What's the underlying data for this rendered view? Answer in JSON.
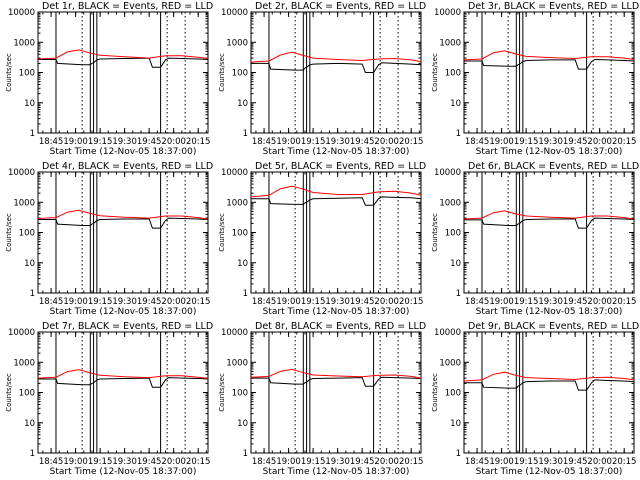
{
  "figure": {
    "background": "#ffffff",
    "events_color": "#000000",
    "lld_color": "#ff0000",
    "axis_color": "#000000"
  },
  "chart_data": [
    {
      "type": "line",
      "title": "Det 1r, BLACK = Events, RED = LLD",
      "xlabel": "Start Time (12-Nov-05 18:37:00)",
      "ylabel": "Counts/sec",
      "x_ticks": [
        "18:45",
        "19:00",
        "19:15",
        "19:30",
        "19:45",
        "20:00",
        "20:15"
      ],
      "y_ticks": [
        "1",
        "10",
        "100",
        "1000",
        "10000"
      ],
      "y_scale": "log",
      "ylim": [
        1,
        10000
      ],
      "vlines_solid": [
        "18:48",
        "19:09",
        "19:11",
        "19:13",
        "19:52"
      ],
      "vlines_dotted": [
        "19:04",
        "19:56",
        "20:07"
      ],
      "series": [
        {
          "name": "Events",
          "color": "#000000",
          "x": [
            "18:37",
            "18:48",
            "18:49",
            "19:04",
            "19:09",
            "19:10",
            "19:11",
            "19:13",
            "19:15",
            "19:30",
            "19:45",
            "19:47",
            "19:52",
            "19:55",
            "19:57",
            "20:05",
            "20:15",
            "20:21"
          ],
          "y": [
            270,
            270,
            200,
            180,
            180,
            200,
            210,
            260,
            280,
            290,
            300,
            150,
            150,
            260,
            300,
            290,
            280,
            270
          ]
        },
        {
          "name": "LLD",
          "color": "#ff0000",
          "x": [
            "18:37",
            "18:48",
            "18:55",
            "19:02",
            "19:08",
            "19:15",
            "19:30",
            "19:45",
            "19:55",
            "20:05",
            "20:15",
            "20:21"
          ],
          "y": [
            280,
            300,
            480,
            560,
            450,
            370,
            330,
            300,
            360,
            360,
            320,
            290
          ]
        }
      ]
    },
    {
      "type": "line",
      "title": "Det 2r, BLACK = Events, RED = LLD",
      "xlabel": "Start Time (12-Nov-05 18:37:00)",
      "ylabel": "Counts/sec",
      "x_ticks": [
        "18:45",
        "19:00",
        "19:15",
        "19:30",
        "19:45",
        "20:00",
        "20:15"
      ],
      "y_ticks": [
        "1",
        "10",
        "100",
        "1000",
        "10000"
      ],
      "y_scale": "log",
      "ylim": [
        1,
        10000
      ],
      "vlines_solid": [
        "18:48",
        "19:09",
        "19:11",
        "19:13",
        "19:52"
      ],
      "vlines_dotted": [
        "19:04",
        "19:56",
        "20:07"
      ],
      "series": [
        {
          "name": "Events",
          "color": "#000000",
          "x": [
            "18:37",
            "18:48",
            "18:49",
            "19:04",
            "19:09",
            "19:10",
            "19:11",
            "19:13",
            "19:15",
            "19:30",
            "19:45",
            "19:47",
            "19:52",
            "19:55",
            "19:57",
            "20:05",
            "20:15",
            "20:21"
          ],
          "y": [
            200,
            200,
            130,
            120,
            120,
            140,
            150,
            180,
            190,
            200,
            190,
            100,
            100,
            180,
            210,
            200,
            190,
            180
          ]
        },
        {
          "name": "LLD",
          "color": "#ff0000",
          "x": [
            "18:37",
            "18:48",
            "18:55",
            "19:02",
            "19:08",
            "19:15",
            "19:30",
            "19:45",
            "19:55",
            "20:05",
            "20:15",
            "20:21"
          ],
          "y": [
            220,
            240,
            380,
            470,
            380,
            300,
            270,
            250,
            280,
            290,
            260,
            230
          ]
        }
      ]
    },
    {
      "type": "line",
      "title": "Det 3r, BLACK = Events, RED = LLD",
      "xlabel": "Start Time (12-Nov-05 18:37:00)",
      "ylabel": "Counts/sec",
      "x_ticks": [
        "18:45",
        "19:00",
        "19:15",
        "19:30",
        "19:45",
        "20:00",
        "20:15"
      ],
      "y_ticks": [
        "1",
        "10",
        "100",
        "1000",
        "10000"
      ],
      "y_scale": "log",
      "ylim": [
        1,
        10000
      ],
      "vlines_solid": [
        "18:48",
        "19:09",
        "19:11",
        "19:13",
        "19:52"
      ],
      "vlines_dotted": [
        "19:04",
        "19:56",
        "20:07"
      ],
      "series": [
        {
          "name": "Events",
          "color": "#000000",
          "x": [
            "18:37",
            "18:48",
            "18:49",
            "19:04",
            "19:09",
            "19:10",
            "19:11",
            "19:13",
            "19:15",
            "19:30",
            "19:45",
            "19:47",
            "19:52",
            "19:55",
            "19:57",
            "20:05",
            "20:15",
            "20:21"
          ],
          "y": [
            240,
            240,
            170,
            160,
            160,
            180,
            190,
            230,
            250,
            260,
            260,
            130,
            130,
            230,
            270,
            260,
            250,
            240
          ]
        },
        {
          "name": "LLD",
          "color": "#ff0000",
          "x": [
            "18:37",
            "18:48",
            "18:55",
            "19:02",
            "19:08",
            "19:15",
            "19:30",
            "19:45",
            "19:55",
            "20:05",
            "20:15",
            "20:21"
          ],
          "y": [
            260,
            280,
            450,
            520,
            420,
            340,
            310,
            290,
            330,
            330,
            300,
            270
          ]
        }
      ]
    },
    {
      "type": "line",
      "title": "Det 4r, BLACK = Events, RED = LLD",
      "xlabel": "Start Time (12-Nov-05 18:37:00)",
      "ylabel": "Counts/sec",
      "x_ticks": [
        "18:45",
        "19:00",
        "19:15",
        "19:30",
        "19:45",
        "20:00",
        "20:15"
      ],
      "y_ticks": [
        "1",
        "10",
        "100",
        "1000",
        "10000"
      ],
      "y_scale": "log",
      "ylim": [
        1,
        10000
      ],
      "vlines_solid": [
        "18:48",
        "19:09",
        "19:11",
        "19:13",
        "19:52"
      ],
      "vlines_dotted": [
        "19:04",
        "19:56",
        "20:07"
      ],
      "series": [
        {
          "name": "Events",
          "color": "#000000",
          "x": [
            "18:37",
            "18:48",
            "18:49",
            "19:04",
            "19:09",
            "19:10",
            "19:11",
            "19:13",
            "19:15",
            "19:30",
            "19:45",
            "19:47",
            "19:52",
            "19:55",
            "19:57",
            "20:05",
            "20:15",
            "20:21"
          ],
          "y": [
            270,
            270,
            190,
            170,
            170,
            190,
            200,
            250,
            270,
            280,
            280,
            140,
            140,
            250,
            300,
            290,
            280,
            270
          ]
        },
        {
          "name": "LLD",
          "color": "#ff0000",
          "x": [
            "18:37",
            "18:48",
            "18:55",
            "19:02",
            "19:08",
            "19:15",
            "19:30",
            "19:45",
            "19:55",
            "20:05",
            "20:15",
            "20:21"
          ],
          "y": [
            290,
            310,
            470,
            540,
            440,
            360,
            320,
            300,
            350,
            350,
            310,
            280
          ]
        }
      ]
    },
    {
      "type": "line",
      "title": "Det 5r, BLACK = Events, RED = LLD",
      "xlabel": "Start Time (12-Nov-05 18:37:00)",
      "ylabel": "Counts/sec",
      "x_ticks": [
        "18:45",
        "19:00",
        "19:15",
        "19:30",
        "19:45",
        "20:00",
        "20:15"
      ],
      "y_ticks": [
        "1",
        "10",
        "100",
        "1000",
        "10000"
      ],
      "y_scale": "log",
      "ylim": [
        1,
        10000
      ],
      "vlines_solid": [
        "18:48",
        "19:09",
        "19:11",
        "19:13",
        "19:52"
      ],
      "vlines_dotted": [
        "19:04",
        "19:56",
        "20:07"
      ],
      "series": [
        {
          "name": "Events",
          "color": "#000000",
          "x": [
            "18:37",
            "18:48",
            "18:49",
            "19:04",
            "19:09",
            "19:10",
            "19:11",
            "19:13",
            "19:15",
            "19:30",
            "19:45",
            "19:47",
            "19:52",
            "19:55",
            "19:57",
            "20:05",
            "20:15",
            "20:21"
          ],
          "y": [
            1300,
            1300,
            900,
            850,
            850,
            950,
            1000,
            1200,
            1300,
            1350,
            1400,
            800,
            800,
            1300,
            1500,
            1450,
            1400,
            1300
          ]
        },
        {
          "name": "LLD",
          "color": "#ff0000",
          "x": [
            "18:37",
            "18:48",
            "18:55",
            "19:02",
            "19:08",
            "19:15",
            "19:30",
            "19:45",
            "19:55",
            "20:05",
            "20:15",
            "20:21"
          ],
          "y": [
            1500,
            1700,
            2800,
            3400,
            2800,
            2100,
            1800,
            1800,
            2200,
            2300,
            2000,
            1700
          ]
        }
      ]
    },
    {
      "type": "line",
      "title": "Det 6r, BLACK = Events, RED = LLD",
      "xlabel": "Start Time (12-Nov-05 18:37:00)",
      "ylabel": "Counts/sec",
      "x_ticks": [
        "18:45",
        "19:00",
        "19:15",
        "19:30",
        "19:45",
        "20:00",
        "20:15"
      ],
      "y_ticks": [
        "1",
        "10",
        "100",
        "1000",
        "10000"
      ],
      "y_scale": "log",
      "ylim": [
        1,
        10000
      ],
      "vlines_solid": [
        "18:48",
        "19:09",
        "19:11",
        "19:13",
        "19:52"
      ],
      "vlines_dotted": [
        "19:04",
        "19:56",
        "20:07"
      ],
      "series": [
        {
          "name": "Events",
          "color": "#000000",
          "x": [
            "18:37",
            "18:48",
            "18:49",
            "19:04",
            "19:09",
            "19:10",
            "19:11",
            "19:13",
            "19:15",
            "19:30",
            "19:45",
            "19:47",
            "19:52",
            "19:55",
            "19:57",
            "20:05",
            "20:15",
            "20:21"
          ],
          "y": [
            260,
            260,
            190,
            170,
            170,
            190,
            200,
            250,
            270,
            280,
            280,
            140,
            140,
            250,
            300,
            290,
            280,
            270
          ]
        },
        {
          "name": "LLD",
          "color": "#ff0000",
          "x": [
            "18:37",
            "18:48",
            "18:55",
            "19:02",
            "19:08",
            "19:15",
            "19:30",
            "19:45",
            "19:55",
            "20:05",
            "20:15",
            "20:21"
          ],
          "y": [
            280,
            300,
            450,
            520,
            420,
            350,
            320,
            300,
            350,
            350,
            310,
            280
          ]
        }
      ]
    },
    {
      "type": "line",
      "title": "Det 7r, BLACK = Events, RED = LLD",
      "xlabel": "Start Time (12-Nov-05 18:37:00)",
      "ylabel": "Counts/sec",
      "x_ticks": [
        "18:45",
        "19:00",
        "19:15",
        "19:30",
        "19:45",
        "20:00",
        "20:15"
      ],
      "y_ticks": [
        "1",
        "10",
        "100",
        "1000",
        "10000"
      ],
      "y_scale": "log",
      "ylim": [
        1,
        10000
      ],
      "vlines_solid": [
        "18:48",
        "19:09",
        "19:11",
        "19:13",
        "19:52"
      ],
      "vlines_dotted": [
        "19:04",
        "19:56",
        "20:07"
      ],
      "series": [
        {
          "name": "Events",
          "color": "#000000",
          "x": [
            "18:37",
            "18:48",
            "18:49",
            "19:04",
            "19:09",
            "19:10",
            "19:11",
            "19:13",
            "19:15",
            "19:30",
            "19:45",
            "19:47",
            "19:52",
            "19:55",
            "19:57",
            "20:05",
            "20:15",
            "20:21"
          ],
          "y": [
            280,
            280,
            200,
            180,
            180,
            200,
            210,
            260,
            280,
            290,
            300,
            150,
            150,
            260,
            310,
            300,
            290,
            280
          ]
        },
        {
          "name": "LLD",
          "color": "#ff0000",
          "x": [
            "18:37",
            "18:48",
            "18:55",
            "19:02",
            "19:08",
            "19:15",
            "19:30",
            "19:45",
            "19:55",
            "20:05",
            "20:15",
            "20:21"
          ],
          "y": [
            300,
            320,
            490,
            570,
            460,
            370,
            330,
            310,
            360,
            360,
            320,
            290
          ]
        }
      ]
    },
    {
      "type": "line",
      "title": "Det 8r, BLACK = Events, RED = LLD",
      "xlabel": "Start Time (12-Nov-05 18:37:00)",
      "ylabel": "Counts/sec",
      "x_ticks": [
        "18:45",
        "19:00",
        "19:15",
        "19:30",
        "19:45",
        "20:00",
        "20:15"
      ],
      "y_ticks": [
        "1",
        "10",
        "100",
        "1000",
        "10000"
      ],
      "y_scale": "log",
      "ylim": [
        1,
        10000
      ],
      "vlines_solid": [
        "18:48",
        "19:09",
        "19:11",
        "19:13",
        "19:52"
      ],
      "vlines_dotted": [
        "19:04",
        "19:56",
        "20:07"
      ],
      "series": [
        {
          "name": "Events",
          "color": "#000000",
          "x": [
            "18:37",
            "18:48",
            "18:49",
            "19:04",
            "19:09",
            "19:10",
            "19:11",
            "19:13",
            "19:15",
            "19:30",
            "19:45",
            "19:47",
            "19:52",
            "19:55",
            "19:57",
            "20:05",
            "20:15",
            "20:21"
          ],
          "y": [
            300,
            300,
            210,
            190,
            190,
            210,
            220,
            270,
            290,
            300,
            310,
            160,
            160,
            270,
            320,
            310,
            300,
            290
          ]
        },
        {
          "name": "LLD",
          "color": "#ff0000",
          "x": [
            "18:37",
            "18:48",
            "18:55",
            "19:02",
            "19:08",
            "19:15",
            "19:30",
            "19:45",
            "19:55",
            "20:05",
            "20:15",
            "20:21"
          ],
          "y": [
            320,
            340,
            500,
            580,
            470,
            380,
            350,
            330,
            370,
            380,
            340,
            300
          ]
        }
      ]
    },
    {
      "type": "line",
      "title": "Det 9r, BLACK = Events, RED = LLD",
      "xlabel": "Start Time (12-Nov-05 18:37:00)",
      "ylabel": "Counts/sec",
      "x_ticks": [
        "18:45",
        "19:00",
        "19:15",
        "19:30",
        "19:45",
        "20:00",
        "20:15"
      ],
      "y_ticks": [
        "1",
        "10",
        "100",
        "1000",
        "10000"
      ],
      "y_scale": "log",
      "ylim": [
        1,
        10000
      ],
      "vlines_solid": [
        "18:48",
        "19:09",
        "19:11",
        "19:13",
        "19:52"
      ],
      "vlines_dotted": [
        "19:04",
        "19:56",
        "20:07"
      ],
      "series": [
        {
          "name": "Events",
          "color": "#000000",
          "x": [
            "18:37",
            "18:48",
            "18:49",
            "19:04",
            "19:09",
            "19:10",
            "19:11",
            "19:13",
            "19:15",
            "19:30",
            "19:45",
            "19:47",
            "19:52",
            "19:55",
            "19:57",
            "20:05",
            "20:15",
            "20:21"
          ],
          "y": [
            210,
            210,
            150,
            140,
            140,
            160,
            170,
            210,
            230,
            240,
            240,
            120,
            120,
            210,
            260,
            250,
            240,
            230
          ]
        },
        {
          "name": "LLD",
          "color": "#ff0000",
          "x": [
            "18:37",
            "18:48",
            "18:55",
            "19:02",
            "19:08",
            "19:15",
            "19:30",
            "19:45",
            "19:55",
            "20:05",
            "20:15",
            "20:21"
          ],
          "y": [
            240,
            260,
            400,
            470,
            380,
            310,
            290,
            270,
            310,
            320,
            290,
            260
          ]
        }
      ]
    }
  ]
}
